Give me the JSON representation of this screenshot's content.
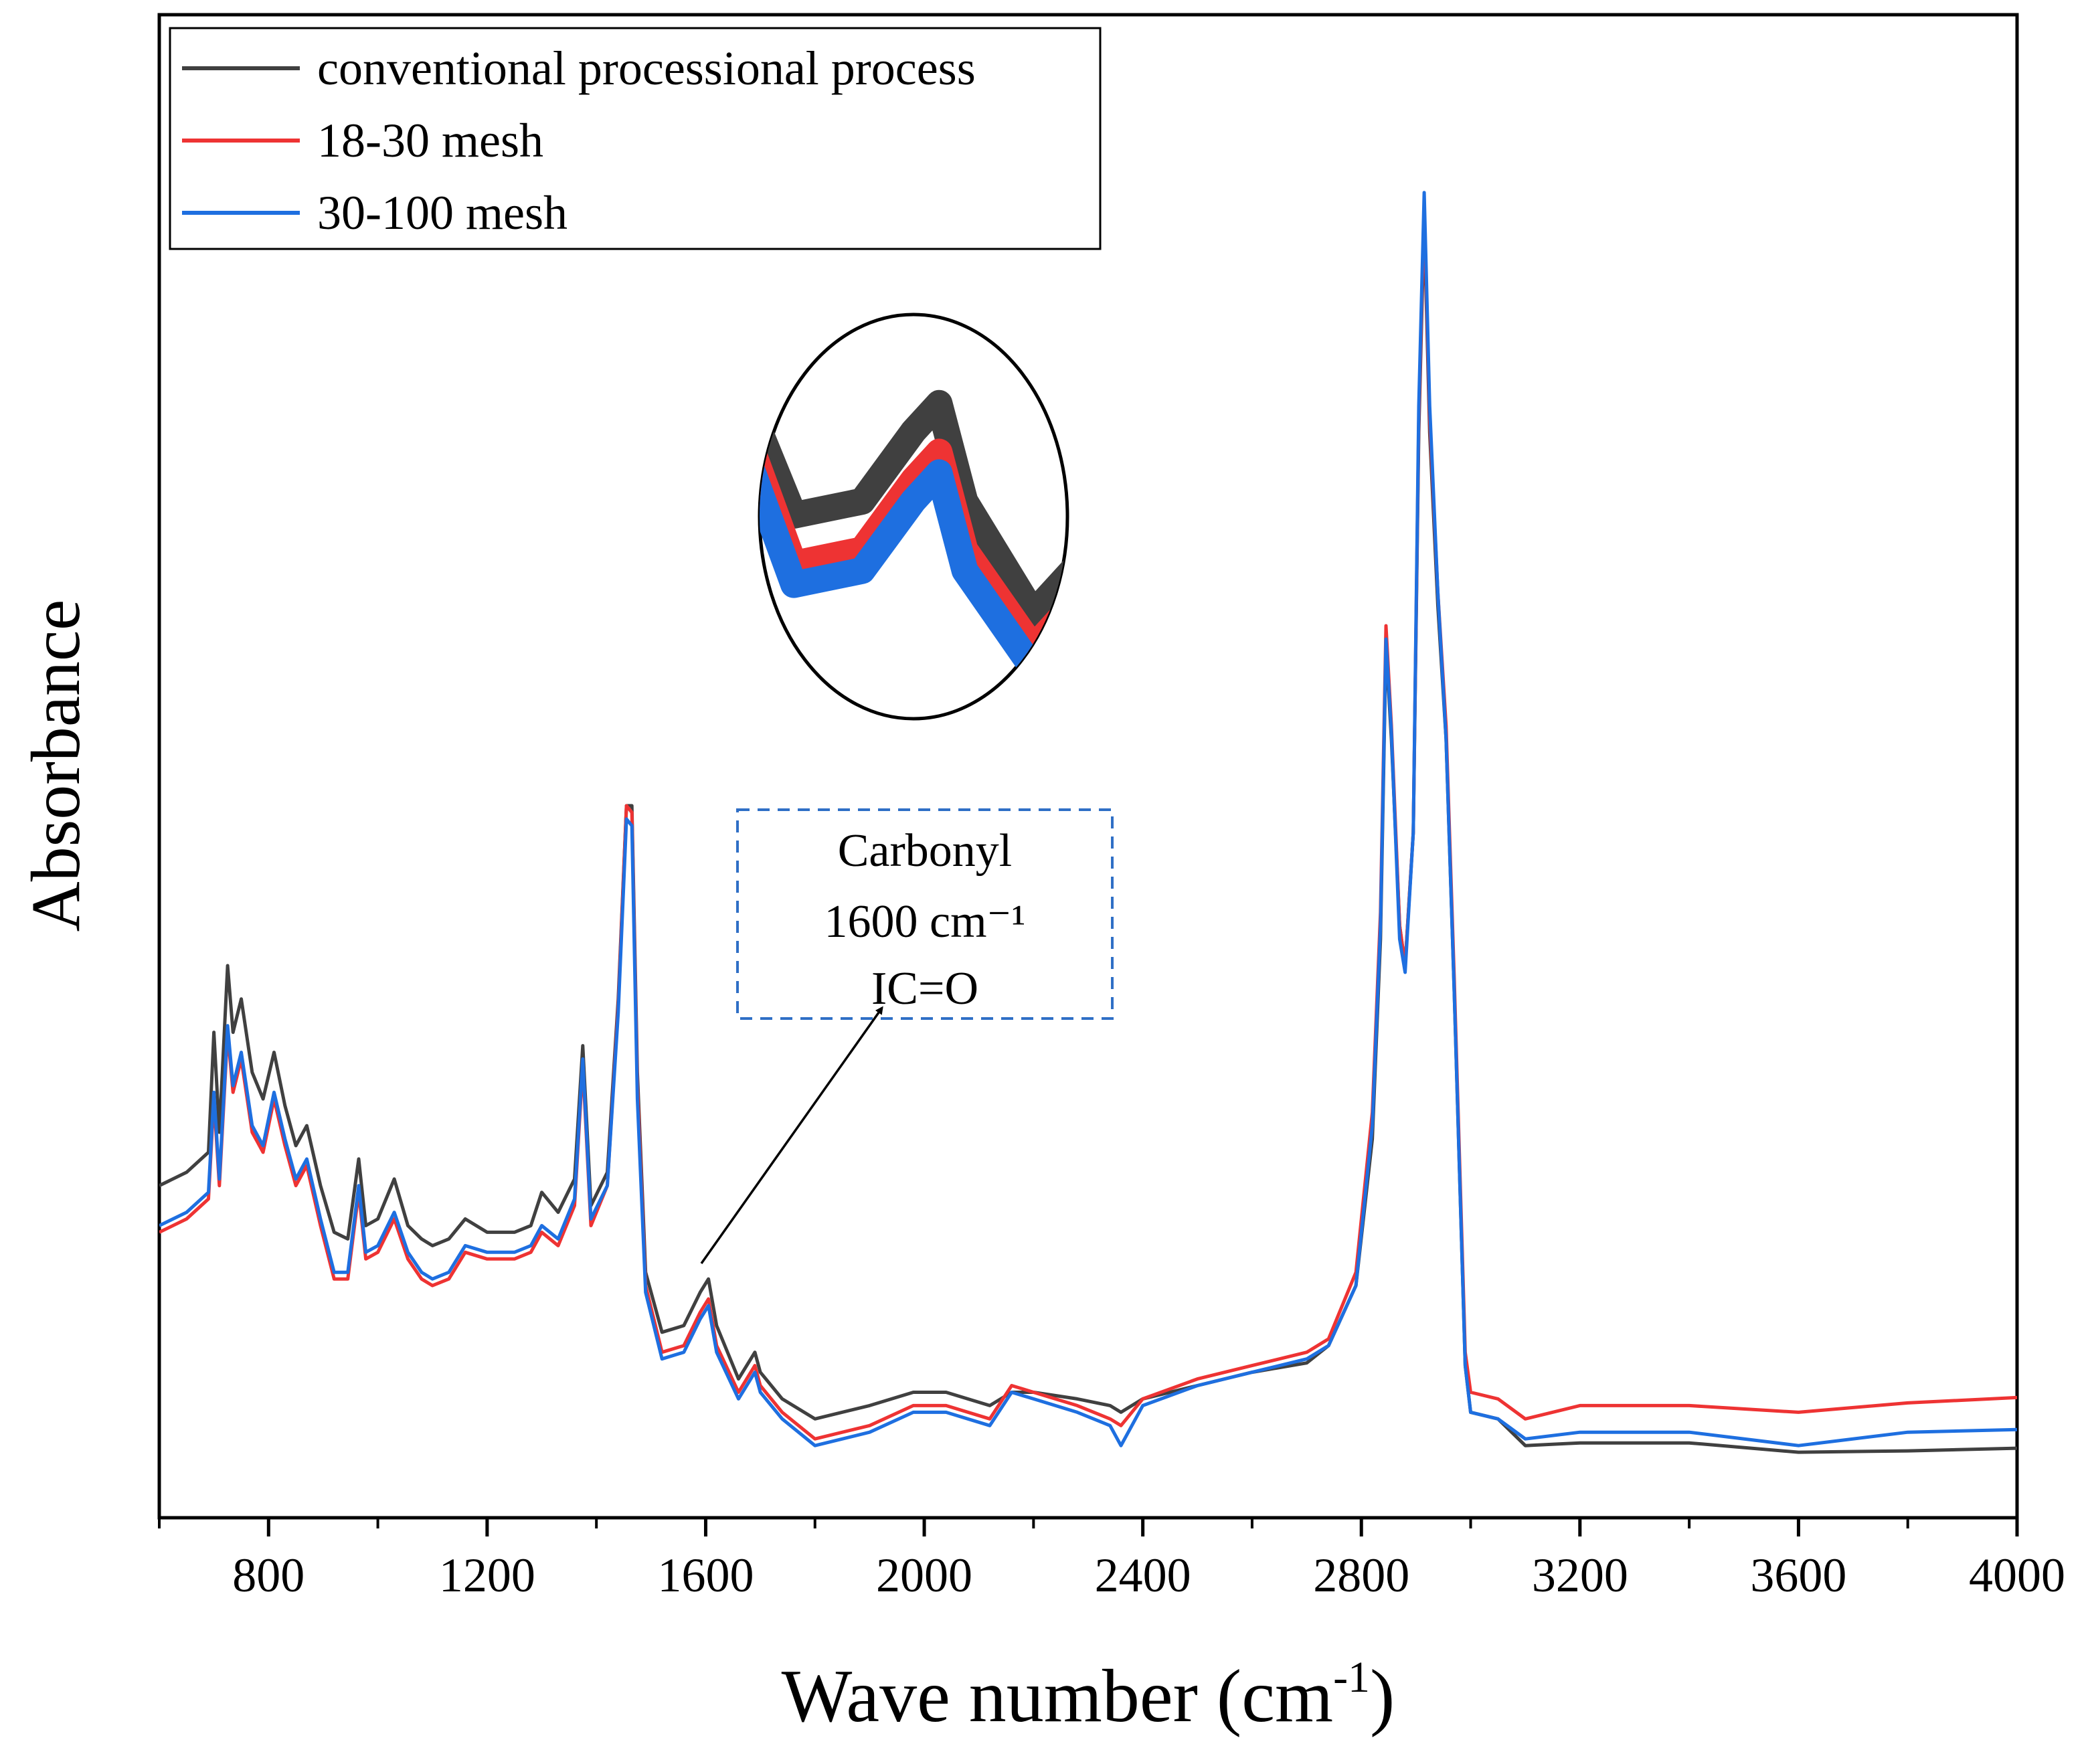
{
  "chart_data": {
    "type": "line",
    "title": "",
    "xlabel": "Wave number (cm",
    "xlabel_sup": "-1",
    "xlabel_close": ")",
    "ylabel": "Absorbance",
    "xlim": [
      600,
      4000
    ],
    "ylim": [
      0,
      1
    ],
    "xticks": [
      800,
      1200,
      1600,
      2000,
      2400,
      2800,
      3200,
      3600,
      4000
    ],
    "xtick_labels": [
      "800",
      "1200",
      "1600",
      "2000",
      "2400",
      "2800",
      "3200",
      "3600",
      "4000"
    ],
    "legend_position": "top-left",
    "series": [
      {
        "name": "conventional processional process",
        "color": "#404040",
        "points": [
          [
            600,
            0.215
          ],
          [
            650,
            0.225
          ],
          [
            690,
            0.24
          ],
          [
            700,
            0.33
          ],
          [
            710,
            0.255
          ],
          [
            725,
            0.38
          ],
          [
            735,
            0.33
          ],
          [
            750,
            0.355
          ],
          [
            770,
            0.3
          ],
          [
            790,
            0.28
          ],
          [
            810,
            0.315
          ],
          [
            830,
            0.275
          ],
          [
            850,
            0.245
          ],
          [
            870,
            0.26
          ],
          [
            895,
            0.215
          ],
          [
            920,
            0.18
          ],
          [
            945,
            0.175
          ],
          [
            965,
            0.235
          ],
          [
            978,
            0.185
          ],
          [
            1000,
            0.19
          ],
          [
            1030,
            0.22
          ],
          [
            1055,
            0.185
          ],
          [
            1080,
            0.175
          ],
          [
            1100,
            0.17
          ],
          [
            1130,
            0.175
          ],
          [
            1160,
            0.19
          ],
          [
            1200,
            0.18
          ],
          [
            1250,
            0.18
          ],
          [
            1280,
            0.185
          ],
          [
            1300,
            0.21
          ],
          [
            1330,
            0.195
          ],
          [
            1360,
            0.22
          ],
          [
            1375,
            0.32
          ],
          [
            1390,
            0.2
          ],
          [
            1420,
            0.225
          ],
          [
            1440,
            0.355
          ],
          [
            1455,
            0.5
          ],
          [
            1465,
            0.5
          ],
          [
            1475,
            0.3
          ],
          [
            1490,
            0.15
          ],
          [
            1520,
            0.105
          ],
          [
            1560,
            0.11
          ],
          [
            1590,
            0.135
          ],
          [
            1605,
            0.145
          ],
          [
            1620,
            0.11
          ],
          [
            1660,
            0.07
          ],
          [
            1690,
            0.09
          ],
          [
            1700,
            0.075
          ],
          [
            1740,
            0.055
          ],
          [
            1800,
            0.04
          ],
          [
            1900,
            0.05
          ],
          [
            1980,
            0.06
          ],
          [
            2040,
            0.06
          ],
          [
            2120,
            0.05
          ],
          [
            2160,
            0.06
          ],
          [
            2200,
            0.06
          ],
          [
            2280,
            0.055
          ],
          [
            2340,
            0.05
          ],
          [
            2360,
            0.045
          ],
          [
            2400,
            0.055
          ],
          [
            2500,
            0.065
          ],
          [
            2600,
            0.075
          ],
          [
            2700,
            0.082
          ],
          [
            2740,
            0.095
          ],
          [
            2790,
            0.14
          ],
          [
            2820,
            0.25
          ],
          [
            2835,
            0.4
          ],
          [
            2845,
            0.62
          ],
          [
            2855,
            0.55
          ],
          [
            2870,
            0.41
          ],
          [
            2880,
            0.38
          ],
          [
            2895,
            0.48
          ],
          [
            2905,
            0.78
          ],
          [
            2915,
            0.94
          ],
          [
            2925,
            0.78
          ],
          [
            2940,
            0.65
          ],
          [
            2955,
            0.55
          ],
          [
            2970,
            0.36
          ],
          [
            2990,
            0.08
          ],
          [
            3000,
            0.045
          ],
          [
            3050,
            0.04
          ],
          [
            3100,
            0.02
          ],
          [
            3200,
            0.022
          ],
          [
            3400,
            0.022
          ],
          [
            3600,
            0.015
          ],
          [
            3800,
            0.016
          ],
          [
            4000,
            0.018
          ]
        ]
      },
      {
        "name": "18-30 mesh",
        "color": "#EE3333",
        "points": [
          [
            600,
            0.18
          ],
          [
            650,
            0.19
          ],
          [
            690,
            0.205
          ],
          [
            700,
            0.28
          ],
          [
            710,
            0.215
          ],
          [
            725,
            0.33
          ],
          [
            735,
            0.285
          ],
          [
            750,
            0.31
          ],
          [
            770,
            0.255
          ],
          [
            790,
            0.24
          ],
          [
            810,
            0.28
          ],
          [
            830,
            0.245
          ],
          [
            850,
            0.215
          ],
          [
            870,
            0.23
          ],
          [
            895,
            0.185
          ],
          [
            920,
            0.145
          ],
          [
            945,
            0.145
          ],
          [
            965,
            0.21
          ],
          [
            978,
            0.16
          ],
          [
            1000,
            0.165
          ],
          [
            1030,
            0.19
          ],
          [
            1055,
            0.16
          ],
          [
            1080,
            0.145
          ],
          [
            1100,
            0.14
          ],
          [
            1130,
            0.145
          ],
          [
            1160,
            0.165
          ],
          [
            1200,
            0.16
          ],
          [
            1250,
            0.16
          ],
          [
            1280,
            0.165
          ],
          [
            1300,
            0.18
          ],
          [
            1330,
            0.17
          ],
          [
            1360,
            0.2
          ],
          [
            1375,
            0.305
          ],
          [
            1390,
            0.185
          ],
          [
            1420,
            0.215
          ],
          [
            1440,
            0.35
          ],
          [
            1455,
            0.5
          ],
          [
            1465,
            0.495
          ],
          [
            1475,
            0.29
          ],
          [
            1490,
            0.14
          ],
          [
            1520,
            0.09
          ],
          [
            1560,
            0.095
          ],
          [
            1590,
            0.12
          ],
          [
            1605,
            0.13
          ],
          [
            1620,
            0.095
          ],
          [
            1660,
            0.06
          ],
          [
            1690,
            0.08
          ],
          [
            1700,
            0.065
          ],
          [
            1740,
            0.045
          ],
          [
            1800,
            0.025
          ],
          [
            1900,
            0.035
          ],
          [
            1980,
            0.05
          ],
          [
            2040,
            0.05
          ],
          [
            2120,
            0.04
          ],
          [
            2160,
            0.065
          ],
          [
            2200,
            0.06
          ],
          [
            2280,
            0.05
          ],
          [
            2340,
            0.04
          ],
          [
            2360,
            0.035
          ],
          [
            2400,
            0.055
          ],
          [
            2500,
            0.07
          ],
          [
            2600,
            0.08
          ],
          [
            2700,
            0.09
          ],
          [
            2740,
            0.1
          ],
          [
            2790,
            0.15
          ],
          [
            2820,
            0.27
          ],
          [
            2835,
            0.42
          ],
          [
            2845,
            0.635
          ],
          [
            2855,
            0.56
          ],
          [
            2870,
            0.41
          ],
          [
            2880,
            0.38
          ],
          [
            2895,
            0.48
          ],
          [
            2905,
            0.79
          ],
          [
            2915,
            0.95
          ],
          [
            2925,
            0.79
          ],
          [
            2940,
            0.66
          ],
          [
            2955,
            0.56
          ],
          [
            2970,
            0.37
          ],
          [
            2990,
            0.09
          ],
          [
            3000,
            0.06
          ],
          [
            3050,
            0.055
          ],
          [
            3100,
            0.04
          ],
          [
            3200,
            0.05
          ],
          [
            3400,
            0.05
          ],
          [
            3600,
            0.045
          ],
          [
            3800,
            0.052
          ],
          [
            4000,
            0.056
          ]
        ]
      },
      {
        "name": "30-100 mesh",
        "color": "#1E6FE0",
        "points": [
          [
            600,
            0.185
          ],
          [
            650,
            0.195
          ],
          [
            690,
            0.21
          ],
          [
            700,
            0.285
          ],
          [
            710,
            0.22
          ],
          [
            725,
            0.335
          ],
          [
            735,
            0.29
          ],
          [
            750,
            0.315
          ],
          [
            770,
            0.26
          ],
          [
            790,
            0.245
          ],
          [
            810,
            0.285
          ],
          [
            830,
            0.25
          ],
          [
            850,
            0.22
          ],
          [
            870,
            0.235
          ],
          [
            895,
            0.19
          ],
          [
            920,
            0.15
          ],
          [
            945,
            0.15
          ],
          [
            965,
            0.215
          ],
          [
            978,
            0.165
          ],
          [
            1000,
            0.17
          ],
          [
            1030,
            0.195
          ],
          [
            1055,
            0.165
          ],
          [
            1080,
            0.15
          ],
          [
            1100,
            0.145
          ],
          [
            1130,
            0.15
          ],
          [
            1160,
            0.17
          ],
          [
            1200,
            0.165
          ],
          [
            1250,
            0.165
          ],
          [
            1280,
            0.17
          ],
          [
            1300,
            0.185
          ],
          [
            1330,
            0.175
          ],
          [
            1360,
            0.205
          ],
          [
            1375,
            0.31
          ],
          [
            1390,
            0.19
          ],
          [
            1420,
            0.215
          ],
          [
            1440,
            0.345
          ],
          [
            1455,
            0.49
          ],
          [
            1465,
            0.485
          ],
          [
            1475,
            0.28
          ],
          [
            1490,
            0.135
          ],
          [
            1520,
            0.085
          ],
          [
            1560,
            0.09
          ],
          [
            1590,
            0.115
          ],
          [
            1605,
            0.125
          ],
          [
            1620,
            0.09
          ],
          [
            1660,
            0.055
          ],
          [
            1690,
            0.075
          ],
          [
            1700,
            0.06
          ],
          [
            1740,
            0.04
          ],
          [
            1800,
            0.02
          ],
          [
            1900,
            0.03
          ],
          [
            1980,
            0.045
          ],
          [
            2040,
            0.045
          ],
          [
            2120,
            0.035
          ],
          [
            2160,
            0.06
          ],
          [
            2200,
            0.055
          ],
          [
            2280,
            0.045
          ],
          [
            2340,
            0.035
          ],
          [
            2360,
            0.02
          ],
          [
            2400,
            0.05
          ],
          [
            2500,
            0.065
          ],
          [
            2600,
            0.075
          ],
          [
            2700,
            0.085
          ],
          [
            2740,
            0.095
          ],
          [
            2790,
            0.14
          ],
          [
            2820,
            0.26
          ],
          [
            2835,
            0.41
          ],
          [
            2845,
            0.625
          ],
          [
            2855,
            0.555
          ],
          [
            2870,
            0.4
          ],
          [
            2880,
            0.375
          ],
          [
            2895,
            0.48
          ],
          [
            2905,
            0.8
          ],
          [
            2915,
            0.96
          ],
          [
            2925,
            0.8
          ],
          [
            2940,
            0.66
          ],
          [
            2955,
            0.55
          ],
          [
            2970,
            0.36
          ],
          [
            2990,
            0.08
          ],
          [
            3000,
            0.045
          ],
          [
            3050,
            0.04
          ],
          [
            3100,
            0.025
          ],
          [
            3200,
            0.03
          ],
          [
            3400,
            0.03
          ],
          [
            3600,
            0.02
          ],
          [
            3800,
            0.03
          ],
          [
            4000,
            0.032
          ]
        ]
      }
    ],
    "annotations": [
      {
        "lines": [
          "Carbonyl",
          "1600 cm⁻¹",
          "IC=O"
        ],
        "style": "dashed-box",
        "border_color": "#2F6FC6",
        "arrow_to_x": 1560,
        "arrow_to_y": 0.112
      }
    ],
    "inset": {
      "description": "magnified carbonyl peak",
      "series_order": [
        "conventional processional process",
        "18-30 mesh",
        "30-100 mesh"
      ]
    }
  }
}
